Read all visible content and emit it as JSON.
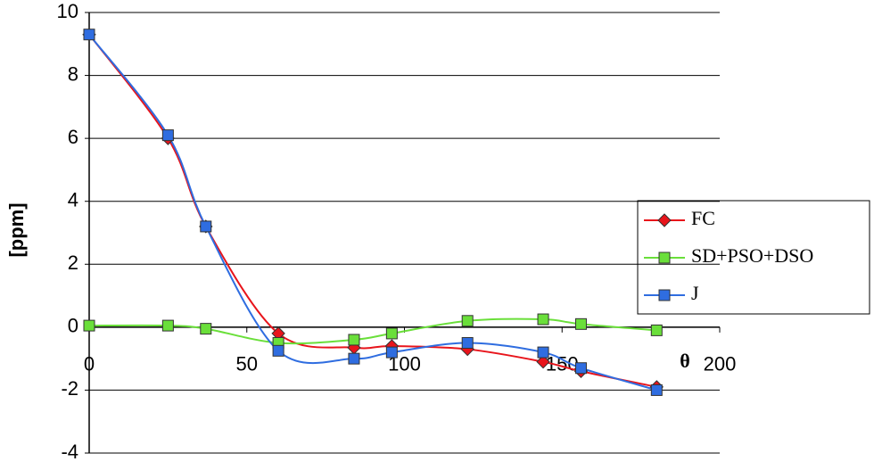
{
  "chart_data": {
    "type": "line",
    "x_label": "θ",
    "y_label": "[ppm]",
    "x": [
      0,
      25,
      37,
      60,
      84,
      96,
      120,
      144,
      156,
      180
    ],
    "series": [
      {
        "name": "FC",
        "color": "#e8141b",
        "marker": "diamond",
        "values": [
          9.3,
          6.0,
          3.2,
          -0.2,
          -0.65,
          -0.6,
          -0.7,
          -1.1,
          -1.4,
          -1.9
        ]
      },
      {
        "name": "SD+PSO+DSO",
        "color": "#6adf3a",
        "marker": "square",
        "values": [
          0.05,
          0.05,
          -0.05,
          -0.5,
          -0.4,
          -0.2,
          0.2,
          0.25,
          0.1,
          -0.1
        ]
      },
      {
        "name": "J",
        "color": "#2f6de0",
        "marker": "square",
        "values": [
          9.3,
          6.1,
          3.2,
          -0.75,
          -1.0,
          -0.8,
          -0.5,
          -0.8,
          -1.3,
          -2.0
        ]
      }
    ],
    "xlim": [
      0,
      200
    ],
    "xticks": [
      0,
      50,
      100,
      150,
      200
    ],
    "ylim": [
      -4,
      10
    ],
    "yticks": [
      -4,
      -2,
      0,
      2,
      4,
      6,
      8,
      10
    ],
    "grid": true,
    "legend": "right"
  }
}
